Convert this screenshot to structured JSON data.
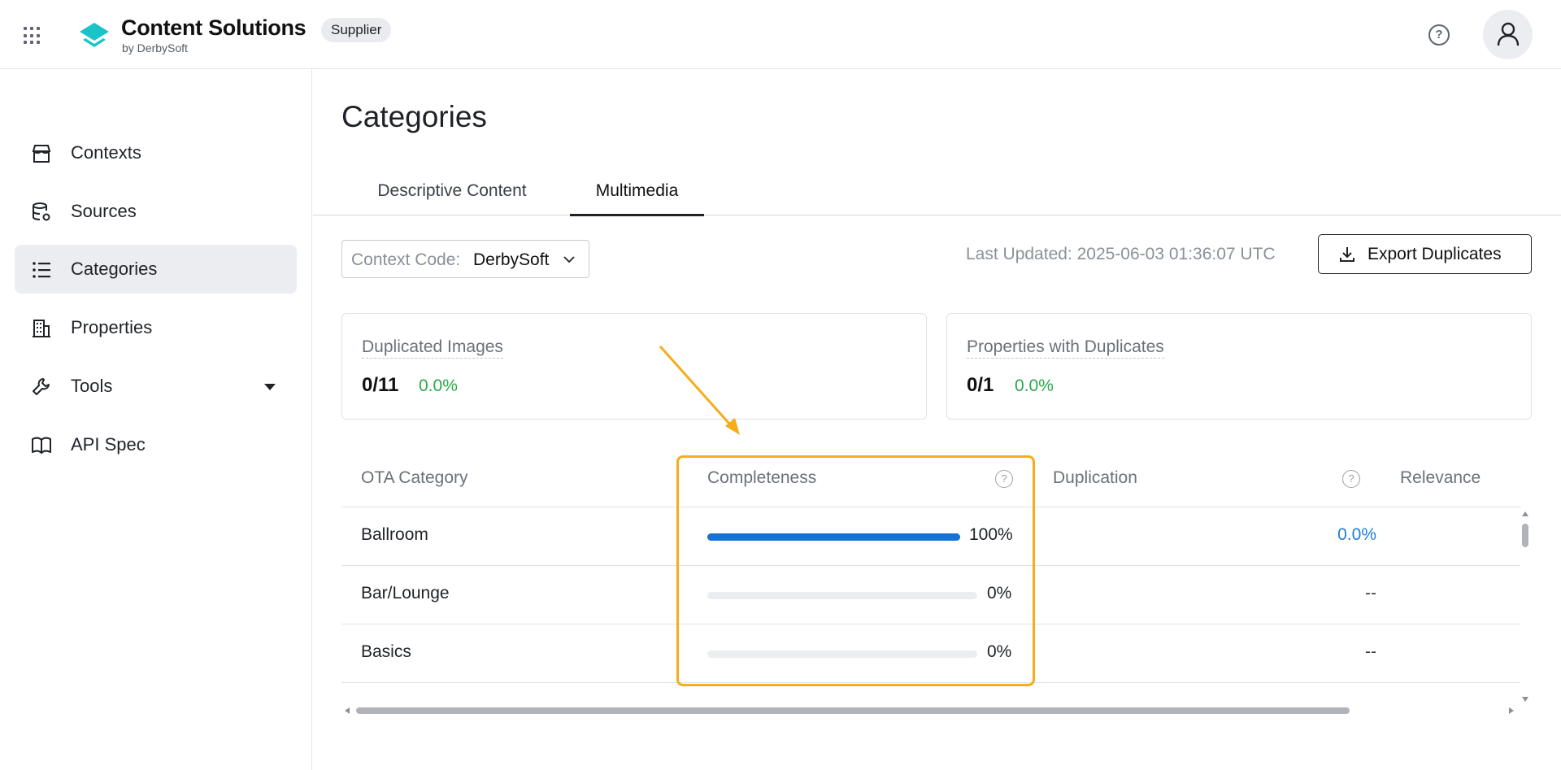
{
  "header": {
    "brand_title": "Content Solutions",
    "brand_subtitle": "by DerbySoft",
    "role_badge": "Supplier",
    "help_label": "?"
  },
  "sidebar": {
    "items": [
      {
        "label": "Contexts",
        "icon": "store-icon"
      },
      {
        "label": "Sources",
        "icon": "database-settings-icon"
      },
      {
        "label": "Categories",
        "icon": "list-icon",
        "active": true
      },
      {
        "label": "Properties",
        "icon": "building-icon"
      },
      {
        "label": "Tools",
        "icon": "wrench-icon",
        "has_submenu": true
      },
      {
        "label": "API Spec",
        "icon": "book-icon"
      }
    ]
  },
  "main": {
    "title": "Categories",
    "tabs": [
      {
        "label": "Descriptive Content"
      },
      {
        "label": "Multimedia",
        "active": true
      }
    ],
    "context_select": {
      "label": "Context Code:",
      "value": "DerbySoft"
    },
    "last_updated": "Last Updated: 2025-06-03 01:36:07 UTC",
    "export_button": "Export Duplicates",
    "stats": [
      {
        "title": "Duplicated Images",
        "value": "0/11",
        "percent": "0.0%"
      },
      {
        "title": "Properties with Duplicates",
        "value": "0/1",
        "percent": "0.0%"
      }
    ],
    "table": {
      "columns": [
        "OTA Category",
        "Completeness",
        "Duplication",
        "Relevance"
      ],
      "help_icon": "?",
      "rows": [
        {
          "category": "Ballroom",
          "completeness": 1.0,
          "completeness_label": "100%",
          "duplication": "0.0%"
        },
        {
          "category": "Bar/Lounge",
          "completeness": 0.0,
          "completeness_label": "0%",
          "duplication": "--"
        },
        {
          "category": "Basics",
          "completeness": 0.0,
          "completeness_label": "0%",
          "duplication": "--"
        }
      ]
    }
  },
  "colors": {
    "accent_blue": "#1672d6",
    "link_blue": "#1e7fd9",
    "success_green": "#2aa84a",
    "highlight_orange": "#f5ad1b",
    "logo_teal": "#19c3c8"
  }
}
